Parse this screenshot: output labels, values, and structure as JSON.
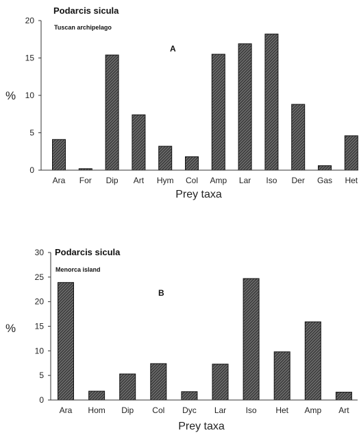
{
  "chart_data": [
    {
      "type": "bar",
      "title": "Podarcis sicula",
      "subtitle": "Tuscan archipelago",
      "panel_label": "A",
      "xlabel": "Prey taxa",
      "ylabel": "%",
      "ylim": [
        0,
        20
      ],
      "yticks": [
        0,
        5,
        10,
        15,
        20
      ],
      "categories": [
        "Ara",
        "For",
        "Dip",
        "Art",
        "Hym",
        "Col",
        "Amp",
        "Lar",
        "Iso",
        "Der",
        "Gas",
        "Het"
      ],
      "values": [
        4.1,
        0.2,
        15.4,
        7.4,
        3.2,
        1.8,
        15.5,
        16.9,
        18.2,
        8.8,
        0.6,
        4.6
      ],
      "grid": false
    },
    {
      "type": "bar",
      "title": "Podarcis sicula",
      "subtitle": "Menorca island",
      "panel_label": "B",
      "xlabel": "Prey taxa",
      "ylabel": "%",
      "ylim": [
        0,
        30
      ],
      "yticks": [
        0,
        5,
        10,
        15,
        20,
        25,
        30
      ],
      "categories": [
        "Ara",
        "Hom",
        "Dip",
        "Col",
        "Dyc",
        "Lar",
        "Iso",
        "Het",
        "Amp",
        "Art"
      ],
      "values": [
        23.9,
        1.8,
        5.3,
        7.4,
        1.7,
        7.3,
        24.7,
        9.8,
        15.9,
        1.6
      ],
      "grid": false
    }
  ]
}
